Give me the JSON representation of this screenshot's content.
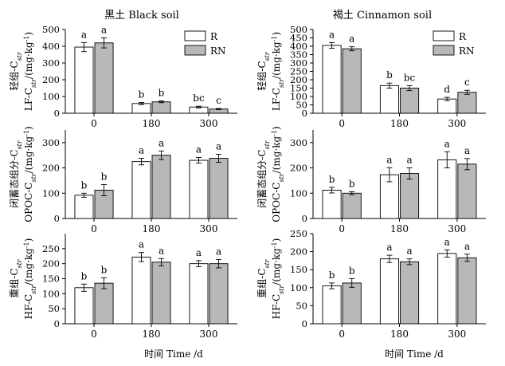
{
  "figure": {
    "column_titles": [
      "黑土 Black soil",
      "褐土 Cinnamon soil"
    ],
    "x_title": "时间  Time /d",
    "legend": [
      {
        "name": "R",
        "color": "#ffffff"
      },
      {
        "name": "RN",
        "color": "#b8b8b8"
      }
    ]
  },
  "chart_data": [
    {
      "type": "bar",
      "id": "lf-black",
      "title": "黑土 Black soil",
      "ylabel_zh": "轻组-C",
      "ylabel_sub": "str",
      "ylabel_en_pre": "LF-C",
      "ylabel_en_post": "/(mg·kg",
      "ylabel_en_sup": "-1",
      "ylabel_en_end": ")",
      "categories": [
        "0",
        "180",
        "300"
      ],
      "ylim": [
        0,
        500
      ],
      "yticks": [
        "0",
        "100",
        "200",
        "300",
        "400",
        "500"
      ],
      "legend": [
        "R",
        "RN"
      ],
      "series": [
        {
          "name": "R",
          "color": "#ffffff",
          "values": [
            395,
            58,
            37
          ],
          "errors": [
            27,
            6,
            5
          ],
          "letters": [
            "a",
            "b",
            "bc"
          ]
        },
        {
          "name": "RN",
          "color": "#b8b8b8",
          "values": [
            420,
            68,
            25
          ],
          "errors": [
            30,
            5,
            3
          ],
          "letters": [
            "a",
            "b",
            "c"
          ]
        }
      ]
    },
    {
      "type": "bar",
      "id": "lf-cinnamon",
      "title": "褐土 Cinnamon soil",
      "ylabel_zh": "轻组-C",
      "ylabel_sub": "str",
      "ylabel_en_pre": "LF-C",
      "ylabel_en_post": "/(mg·kg",
      "ylabel_en_sup": "-1",
      "ylabel_en_end": ")",
      "categories": [
        "0",
        "180",
        "300"
      ],
      "ylim": [
        0,
        500
      ],
      "yticks": [
        "0",
        "50",
        "100",
        "150",
        "200",
        "250",
        "300",
        "350",
        "400",
        "450",
        "500"
      ],
      "legend": [
        "R",
        "RN"
      ],
      "series": [
        {
          "name": "R",
          "color": "#ffffff",
          "values": [
            405,
            165,
            85
          ],
          "errors": [
            17,
            15,
            10
          ],
          "letters": [
            "a",
            "b",
            "d"
          ]
        },
        {
          "name": "RN",
          "color": "#b8b8b8",
          "values": [
            385,
            150,
            125
          ],
          "errors": [
            12,
            15,
            12
          ],
          "letters": [
            "a",
            "bc",
            "c"
          ]
        }
      ]
    },
    {
      "type": "bar",
      "id": "opoc-black",
      "ylabel_zh": "闭蓄态组分-C",
      "ylabel_sub": "str",
      "ylabel_en_pre": "OPOC-C",
      "ylabel_en_post": "/(mg·kg",
      "ylabel_en_sup": "-1",
      "ylabel_en_end": ")",
      "categories": [
        "0",
        "180",
        "300"
      ],
      "ylim": [
        0,
        350
      ],
      "yticks": [
        "0",
        "100",
        "200",
        "300"
      ],
      "series": [
        {
          "name": "R",
          "color": "#ffffff",
          "values": [
            92,
            225,
            230
          ],
          "errors": [
            8,
            13,
            11
          ],
          "letters": [
            "b",
            "a",
            "a"
          ]
        },
        {
          "name": "RN",
          "color": "#b8b8b8",
          "values": [
            112,
            250,
            238
          ],
          "errors": [
            22,
            17,
            16
          ],
          "letters": [
            "b",
            "a",
            "a"
          ]
        }
      ]
    },
    {
      "type": "bar",
      "id": "opoc-cinnamon",
      "ylabel_zh": "闭蓄态组分-C",
      "ylabel_sub": "str",
      "ylabel_en_pre": "OPOC-C",
      "ylabel_en_post": "/(mg·kg",
      "ylabel_en_sup": "-1",
      "ylabel_en_end": ")",
      "categories": [
        "0",
        "180",
        "300"
      ],
      "ylim": [
        0,
        350
      ],
      "yticks": [
        "0",
        "100",
        "200",
        "300"
      ],
      "series": [
        {
          "name": "R",
          "color": "#ffffff",
          "values": [
            112,
            173,
            232
          ],
          "errors": [
            11,
            28,
            32
          ],
          "letters": [
            "b",
            "a",
            "a"
          ]
        },
        {
          "name": "RN",
          "color": "#b8b8b8",
          "values": [
            100,
            178,
            215
          ],
          "errors": [
            6,
            22,
            22
          ],
          "letters": [
            "b",
            "a",
            "a"
          ]
        }
      ]
    },
    {
      "type": "bar",
      "id": "hf-black",
      "ylabel_zh": "重组-C",
      "ylabel_sub": "str",
      "ylabel_en_pre": "HF-C",
      "ylabel_en_post": "/(mg·kg",
      "ylabel_en_sup": "-1",
      "ylabel_en_end": ")",
      "categories": [
        "0",
        "180",
        "300"
      ],
      "ylim": [
        0,
        300
      ],
      "yticks": [
        "0",
        "50",
        "100",
        "150",
        "200",
        "250"
      ],
      "series": [
        {
          "name": "R",
          "color": "#ffffff",
          "values": [
            120,
            222,
            200
          ],
          "errors": [
            12,
            15,
            10
          ],
          "letters": [
            "b",
            "a",
            "a"
          ]
        },
        {
          "name": "RN",
          "color": "#b8b8b8",
          "values": [
            135,
            205,
            200
          ],
          "errors": [
            18,
            12,
            14
          ],
          "letters": [
            "b",
            "a",
            "a"
          ]
        }
      ]
    },
    {
      "type": "bar",
      "id": "hf-cinnamon",
      "ylabel_zh": "重组-C",
      "ylabel_sub": "str",
      "ylabel_en_pre": "HF-C",
      "ylabel_en_post": "/(mg·kg",
      "ylabel_en_sup": "-1",
      "ylabel_en_end": ")",
      "categories": [
        "0",
        "180",
        "300"
      ],
      "ylim": [
        0,
        250
      ],
      "yticks": [
        "0",
        "50",
        "100",
        "150",
        "200",
        "250"
      ],
      "series": [
        {
          "name": "R",
          "color": "#ffffff",
          "values": [
            105,
            180,
            195
          ],
          "errors": [
            8,
            10,
            10
          ],
          "letters": [
            "b",
            "a",
            "a"
          ]
        },
        {
          "name": "RN",
          "color": "#b8b8b8",
          "values": [
            113,
            172,
            183
          ],
          "errors": [
            12,
            8,
            10
          ],
          "letters": [
            "b",
            "a",
            "a"
          ]
        }
      ]
    }
  ]
}
